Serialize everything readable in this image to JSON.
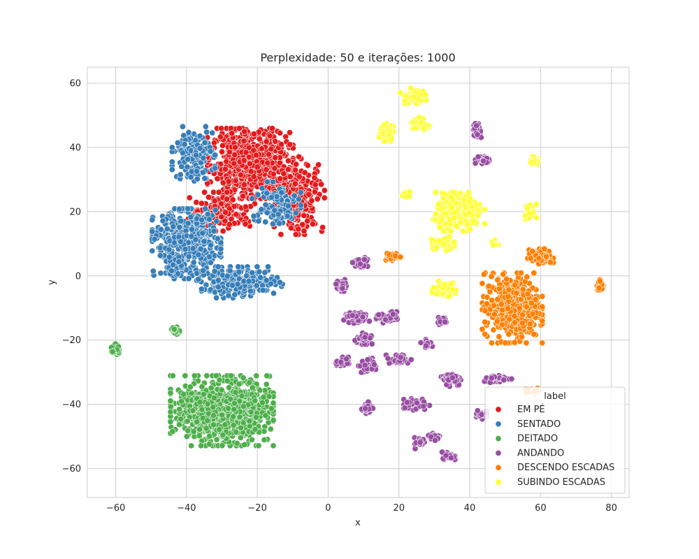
{
  "chart_data": {
    "type": "scatter",
    "title": "Perplexidade: 50 e iterações: 1000",
    "xlabel": "x",
    "ylabel": "y",
    "xlim": [
      -68,
      85
    ],
    "ylim": [
      -69,
      65
    ],
    "xticks": [
      -60,
      -40,
      -20,
      0,
      20,
      40,
      60,
      80
    ],
    "yticks": [
      -60,
      -40,
      -20,
      0,
      20,
      40,
      60
    ],
    "grid": true,
    "legend": {
      "title": "label",
      "placement": "lower-right"
    },
    "series": [
      {
        "name": "EM PÉ",
        "color": "#e41a1c",
        "clusters": [
          {
            "cx": -22,
            "cy": 35,
            "sx": 10,
            "sy": 9,
            "n": 700
          },
          {
            "cx": -8,
            "cy": 25,
            "sx": 6,
            "sy": 10,
            "n": 200
          },
          {
            "cx": -30,
            "cy": 20,
            "sx": 8,
            "sy": 5,
            "n": 150
          }
        ]
      },
      {
        "name": "SENTADO",
        "color": "#377eb8",
        "clusters": [
          {
            "cx": -40,
            "cy": 10,
            "sx": 8,
            "sy": 9,
            "n": 500
          },
          {
            "cx": -25,
            "cy": -2,
            "sx": 10,
            "sy": 4,
            "n": 250
          },
          {
            "cx": -38,
            "cy": 38,
            "sx": 5,
            "sy": 7,
            "n": 150
          },
          {
            "cx": -15,
            "cy": 22,
            "sx": 6,
            "sy": 6,
            "n": 120
          }
        ]
      },
      {
        "name": "DEITADO",
        "color": "#4daf4a",
        "clusters": [
          {
            "cx": -30,
            "cy": -42,
            "sx": 12,
            "sy": 9,
            "n": 800
          },
          {
            "cx": -60,
            "cy": -23,
            "sx": 1,
            "sy": 1.5,
            "n": 40
          },
          {
            "cx": -43,
            "cy": -17,
            "sx": 1,
            "sy": 1,
            "n": 25
          }
        ]
      },
      {
        "name": "ANDANDO",
        "color": "#984ea3",
        "clusters": [
          {
            "cx": 42,
            "cy": 45,
            "sx": 1,
            "sy": 2,
            "n": 40
          },
          {
            "cx": 44,
            "cy": 36,
            "sx": 2,
            "sy": 1,
            "n": 40
          },
          {
            "cx": 9,
            "cy": 4,
            "sx": 2,
            "sy": 1.5,
            "n": 40
          },
          {
            "cx": 4,
            "cy": -3,
            "sx": 1.5,
            "sy": 1.5,
            "n": 40
          },
          {
            "cx": 8,
            "cy": -13,
            "sx": 3,
            "sy": 1.5,
            "n": 50
          },
          {
            "cx": 17,
            "cy": -13,
            "sx": 3,
            "sy": 1.5,
            "n": 50
          },
          {
            "cx": 10,
            "cy": -20,
            "sx": 2,
            "sy": 2,
            "n": 40
          },
          {
            "cx": 11,
            "cy": -28,
            "sx": 2,
            "sy": 2,
            "n": 40
          },
          {
            "cx": 4,
            "cy": -27,
            "sx": 1.5,
            "sy": 1.5,
            "n": 30
          },
          {
            "cx": 20,
            "cy": -26,
            "sx": 3,
            "sy": 1.5,
            "n": 40
          },
          {
            "cx": 25,
            "cy": -40,
            "sx": 3,
            "sy": 1.5,
            "n": 40
          },
          {
            "cx": 11,
            "cy": -41,
            "sx": 1.5,
            "sy": 1.5,
            "n": 30
          },
          {
            "cx": 35,
            "cy": -32,
            "sx": 2.5,
            "sy": 2,
            "n": 60
          },
          {
            "cx": 30,
            "cy": -50,
            "sx": 1.5,
            "sy": 1,
            "n": 20
          },
          {
            "cx": 26,
            "cy": -52,
            "sx": 1.5,
            "sy": 1.5,
            "n": 20
          },
          {
            "cx": 34,
            "cy": -56,
            "sx": 1.5,
            "sy": 1,
            "n": 30
          },
          {
            "cx": 48,
            "cy": -32,
            "sx": 4,
            "sy": 1,
            "n": 40
          },
          {
            "cx": 43,
            "cy": -43,
            "sx": 1.5,
            "sy": 1.5,
            "n": 25
          },
          {
            "cx": 28,
            "cy": -21,
            "sx": 1.5,
            "sy": 1,
            "n": 15
          },
          {
            "cx": 32,
            "cy": -14,
            "sx": 1.5,
            "sy": 1,
            "n": 15
          }
        ]
      },
      {
        "name": "DESCENDO ESCADAS",
        "color": "#ff7f00",
        "clusters": [
          {
            "cx": 52,
            "cy": -10,
            "sx": 7,
            "sy": 9,
            "n": 450
          },
          {
            "cx": 60,
            "cy": 6,
            "sx": 3,
            "sy": 2,
            "n": 80
          },
          {
            "cx": 18,
            "cy": 6,
            "sx": 2,
            "sy": 1,
            "n": 40
          },
          {
            "cx": 77,
            "cy": -3,
            "sx": 1,
            "sy": 1.5,
            "n": 30
          },
          {
            "cx": 58,
            "cy": -36,
            "sx": 2,
            "sy": 1,
            "n": 20
          }
        ]
      },
      {
        "name": "SUBINDO ESCADAS",
        "color": "#ffff33",
        "clusters": [
          {
            "cx": 24,
            "cy": 56,
            "sx": 3,
            "sy": 2,
            "n": 50
          },
          {
            "cx": 16,
            "cy": 45,
            "sx": 2,
            "sy": 3,
            "n": 50
          },
          {
            "cx": 26,
            "cy": 47,
            "sx": 2,
            "sy": 2,
            "n": 40
          },
          {
            "cx": 37,
            "cy": 20,
            "sx": 6,
            "sy": 5,
            "n": 250
          },
          {
            "cx": 32,
            "cy": 10,
            "sx": 3,
            "sy": 2,
            "n": 50
          },
          {
            "cx": 33,
            "cy": -4,
            "sx": 3,
            "sy": 2,
            "n": 60
          },
          {
            "cx": 58,
            "cy": 36,
            "sx": 1,
            "sy": 1,
            "n": 25
          },
          {
            "cx": 57,
            "cy": 20,
            "sx": 1.5,
            "sy": 2,
            "n": 25
          },
          {
            "cx": 22,
            "cy": 25,
            "sx": 1,
            "sy": 1,
            "n": 10
          },
          {
            "cx": 47,
            "cy": 10,
            "sx": 1,
            "sy": 1,
            "n": 15
          }
        ]
      }
    ]
  }
}
